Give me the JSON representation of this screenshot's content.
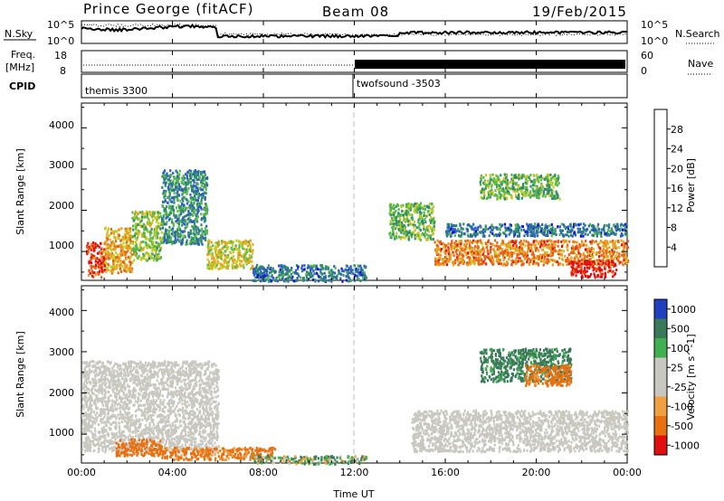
{
  "header": {
    "station": "Prince George (fitACF)",
    "beam": "Beam 08",
    "date": "19/Feb/2015"
  },
  "summary_panels": {
    "nsky": {
      "label": "N.Sky",
      "ticks": [
        "10^5",
        "10^0"
      ],
      "right_label": "N.Search",
      "right_ticks": [
        "10^5",
        "10^0"
      ]
    },
    "freq": {
      "label_line1": "Freq.",
      "label_line2": "[MHz]",
      "ticks": [
        "18",
        "8"
      ],
      "right_label": "Nave",
      "right_ticks": [
        "60",
        "0"
      ]
    },
    "cpid": {
      "label": "CPID",
      "segments": [
        "themis 3300",
        "twofsound -3503"
      ]
    }
  },
  "time_axis": {
    "label": "Time UT",
    "ticks": [
      "00:00",
      "04:00",
      "08:00",
      "12:00",
      "16:00",
      "20:00",
      "00:00"
    ]
  },
  "power_panel": {
    "ylabel": "Slant Range [km]",
    "yticks": [
      "1000",
      "2000",
      "3000",
      "4000"
    ],
    "colorbar_label": "Power [dB]",
    "colorbar_ticks": [
      "4",
      "8",
      "12",
      "16",
      "20",
      "24",
      "28"
    ],
    "colors": [
      "#1010e0",
      "#2d5fc0",
      "#2e8c6a",
      "#58b848",
      "#c8c820",
      "#e8a020",
      "#e86018",
      "#e01010"
    ]
  },
  "velocity_panel": {
    "ylabel": "Slant Range [km]",
    "yticks": [
      "1000",
      "2000",
      "3000",
      "4000"
    ],
    "colorbar_label": "Velocity [m s^-1]",
    "colorbar_ticks": [
      "1000",
      "500",
      "100",
      "25",
      "-25",
      "-100",
      "-500",
      "-1000"
    ],
    "colors": [
      "#2040c0",
      "#3a7a58",
      "#40b050",
      "#c8c8c0",
      "#c8c8c0",
      "#f0a040",
      "#e87010",
      "#e01010"
    ]
  },
  "chart_data": [
    {
      "type": "heatmap",
      "title": "Power [dB]",
      "x_unit": "hours UT",
      "xlim": [
        0,
        24
      ],
      "ylim": [
        300,
        4600
      ],
      "vlim": [
        0,
        32
      ],
      "regions": [
        {
          "t": [
            0.2,
            1.0
          ],
          "r": [
            400,
            1250
          ],
          "v": 28
        },
        {
          "t": [
            1.0,
            2.2
          ],
          "r": [
            500,
            1600
          ],
          "v": 22
        },
        {
          "t": [
            2.2,
            3.5
          ],
          "r": [
            800,
            2000
          ],
          "v": 16
        },
        {
          "t": [
            3.5,
            5.5
          ],
          "r": [
            1200,
            3000
          ],
          "v": 10
        },
        {
          "t": [
            5.5,
            7.5
          ],
          "r": [
            600,
            1300
          ],
          "v": 18
        },
        {
          "t": [
            7.5,
            12.5
          ],
          "r": [
            300,
            700
          ],
          "v": 8
        },
        {
          "t": [
            13.5,
            15.5
          ],
          "r": [
            1300,
            2200
          ],
          "v": 14
        },
        {
          "t": [
            15.5,
            24.0
          ],
          "r": [
            700,
            1300
          ],
          "v": 24
        },
        {
          "t": [
            21.5,
            23.5
          ],
          "r": [
            400,
            800
          ],
          "v": 30
        },
        {
          "t": [
            17.5,
            21.0
          ],
          "r": [
            2300,
            2900
          ],
          "v": 14
        },
        {
          "t": [
            16.0,
            24.0
          ],
          "r": [
            1400,
            1700
          ],
          "v": 8
        }
      ]
    },
    {
      "type": "heatmap",
      "title": "Velocity [m s^-1]",
      "x_unit": "hours UT",
      "xlim": [
        0,
        24
      ],
      "ylim": [
        300,
        4600
      ],
      "vlim": [
        -1000,
        1000
      ],
      "regions": [
        {
          "t": [
            0.0,
            6.0
          ],
          "r": [
            600,
            2800
          ],
          "v": 0
        },
        {
          "t": [
            1.5,
            3.5
          ],
          "r": [
            500,
            900
          ],
          "v": -300
        },
        {
          "t": [
            3.5,
            8.5
          ],
          "r": [
            400,
            700
          ],
          "v": -200
        },
        {
          "t": [
            7.5,
            12.5
          ],
          "r": [
            300,
            500
          ],
          "v": 60
        },
        {
          "t": [
            14.5,
            24.0
          ],
          "r": [
            600,
            1600
          ],
          "v": 0
        },
        {
          "t": [
            17.5,
            21.5
          ],
          "r": [
            2300,
            3100
          ],
          "v": 200
        },
        {
          "t": [
            19.5,
            21.5
          ],
          "r": [
            2200,
            2700
          ],
          "v": -200
        }
      ]
    }
  ]
}
